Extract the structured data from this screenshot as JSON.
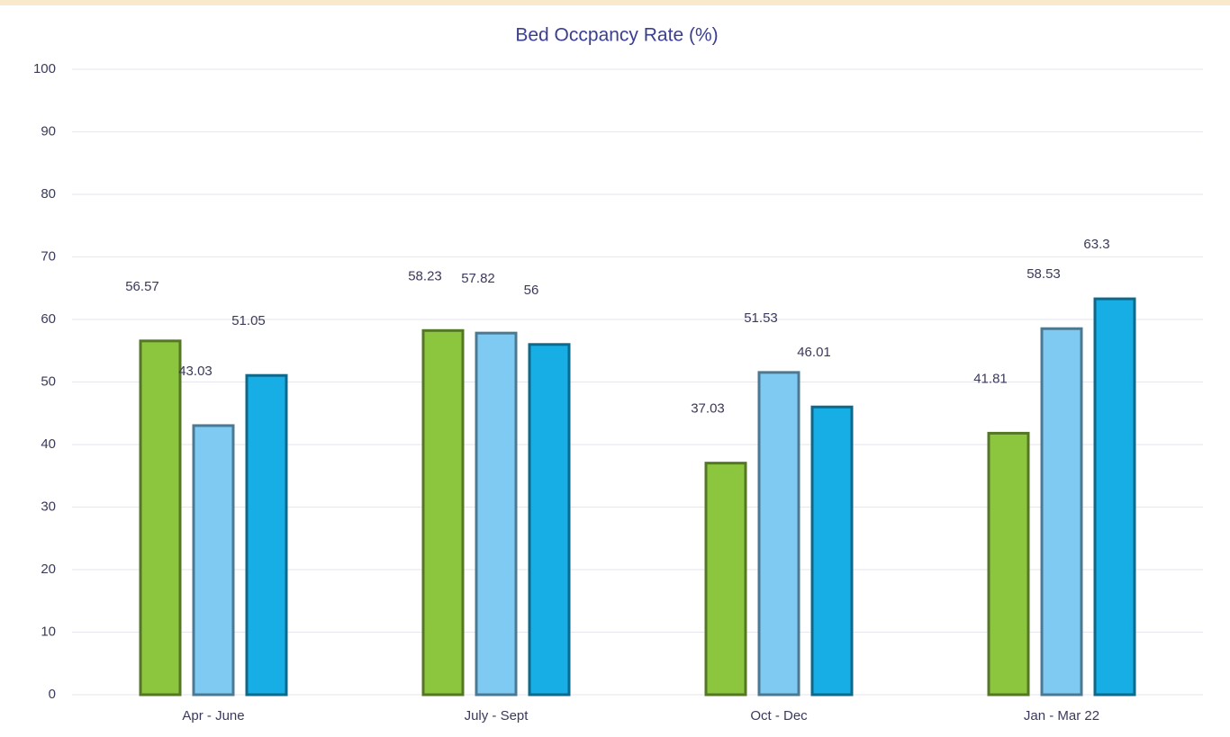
{
  "chart_data": {
    "type": "bar",
    "title": "Bed Occpancy Rate (%)",
    "categories": [
      "Apr - June",
      "July - Sept",
      "Oct - Dec",
      "Jan - Mar 22"
    ],
    "series": [
      {
        "color": "#8cc63e",
        "values": [
          56.57,
          58.23,
          37.03,
          41.81
        ]
      },
      {
        "color": "#7fcaf2",
        "values": [
          43.03,
          57.82,
          51.53,
          58.53
        ]
      },
      {
        "color": "#17aee6",
        "values": [
          51.05,
          56,
          46.01,
          63.3
        ]
      }
    ],
    "ylim": [
      0,
      100
    ],
    "yticks": [
      0,
      10,
      20,
      30,
      40,
      50,
      60,
      70,
      80,
      90,
      100
    ],
    "grid": true
  }
}
